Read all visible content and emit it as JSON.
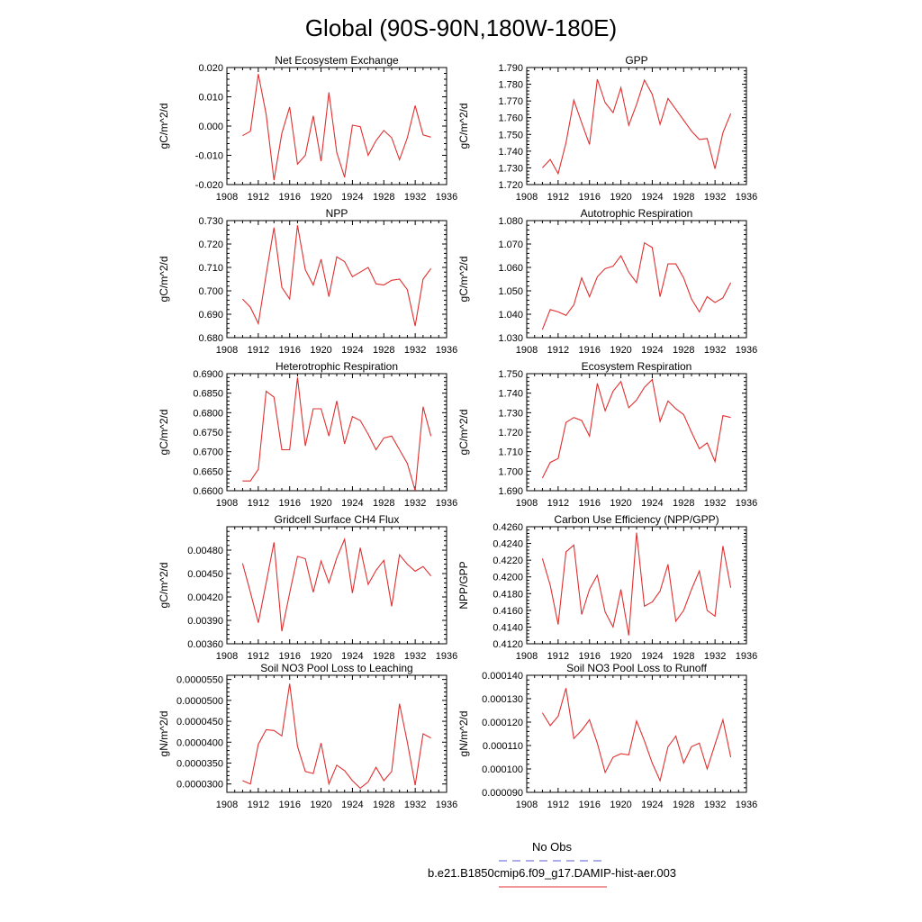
{
  "figure": {
    "title": "Global (90S-90N,180W-180E)",
    "legend": [
      {
        "label": "No Obs",
        "color": "#5b5bd6",
        "dash": true
      },
      {
        "label": "b.e21.B1850cmip6.f09_g17.DAMIP-hist-aer.003",
        "color": "#e03030",
        "dash": false
      }
    ]
  },
  "chart_data": [
    {
      "type": "line",
      "title": "Net Ecosystem Exchange",
      "ylabel": "gC/m^2/d",
      "xlim": [
        1908,
        1936
      ],
      "xticks": [
        1908,
        1912,
        1916,
        1920,
        1924,
        1928,
        1932,
        1936
      ],
      "ylim": [
        -0.02,
        0.02
      ],
      "yticks": [
        -0.02,
        -0.01,
        0.0,
        0.01,
        0.02
      ],
      "ytick_labels": [
        "-0.020",
        "-0.010",
        "0.000",
        "0.010",
        "0.020"
      ],
      "x": [
        1910,
        1911,
        1912,
        1913,
        1914,
        1915,
        1916,
        1917,
        1918,
        1919,
        1920,
        1921,
        1922,
        1923,
        1924,
        1925,
        1926,
        1927,
        1928,
        1929,
        1930,
        1931,
        1932,
        1933,
        1934
      ],
      "series": [
        {
          "color": "#e03030",
          "values": [
            -0.0033,
            -0.0018,
            0.0178,
            0.004,
            -0.0185,
            -0.0025,
            0.0065,
            -0.013,
            -0.01,
            0.0035,
            -0.012,
            0.0115,
            -0.009,
            -0.0175,
            0.0003,
            -0.0002,
            -0.01,
            -0.005,
            -0.0015,
            -0.004,
            -0.0115,
            -0.004,
            0.007,
            -0.003,
            -0.0038
          ]
        }
      ]
    },
    {
      "type": "line",
      "title": "GPP",
      "ylabel": "gC/m^2/d",
      "xlim": [
        1908,
        1936
      ],
      "xticks": [
        1908,
        1912,
        1916,
        1920,
        1924,
        1928,
        1932,
        1936
      ],
      "ylim": [
        1.72,
        1.79
      ],
      "yticks": [
        1.72,
        1.73,
        1.74,
        1.75,
        1.76,
        1.77,
        1.78,
        1.79
      ],
      "ytick_labels": [
        "1.720",
        "1.730",
        "1.740",
        "1.750",
        "1.760",
        "1.770",
        "1.780",
        "1.790"
      ],
      "x": [
        1910,
        1911,
        1912,
        1913,
        1914,
        1915,
        1916,
        1917,
        1918,
        1919,
        1920,
        1921,
        1922,
        1923,
        1924,
        1925,
        1926,
        1927,
        1928,
        1929,
        1930,
        1931,
        1932,
        1933,
        1934
      ],
      "series": [
        {
          "color": "#e03030",
          "values": [
            1.73,
            1.735,
            1.7265,
            1.745,
            1.7705,
            1.757,
            1.744,
            1.783,
            1.769,
            1.763,
            1.778,
            1.7555,
            1.768,
            1.7825,
            1.774,
            1.756,
            1.7715,
            1.765,
            1.7585,
            1.752,
            1.747,
            1.7475,
            1.7295,
            1.751,
            1.7625
          ]
        }
      ]
    },
    {
      "type": "line",
      "title": "NPP",
      "ylabel": "gC/m^2/d",
      "xlim": [
        1908,
        1936
      ],
      "xticks": [
        1908,
        1912,
        1916,
        1920,
        1924,
        1928,
        1932,
        1936
      ],
      "ylim": [
        0.68,
        0.73
      ],
      "yticks": [
        0.68,
        0.69,
        0.7,
        0.71,
        0.72,
        0.73
      ],
      "ytick_labels": [
        "0.680",
        "0.690",
        "0.700",
        "0.710",
        "0.720",
        "0.730"
      ],
      "x": [
        1910,
        1911,
        1912,
        1913,
        1914,
        1915,
        1916,
        1917,
        1918,
        1919,
        1920,
        1921,
        1922,
        1923,
        1924,
        1925,
        1926,
        1927,
        1928,
        1929,
        1930,
        1931,
        1932,
        1933,
        1934
      ],
      "series": [
        {
          "color": "#e03030",
          "values": [
            0.6965,
            0.693,
            0.686,
            0.707,
            0.727,
            0.7015,
            0.6965,
            0.728,
            0.709,
            0.7025,
            0.7135,
            0.6975,
            0.7145,
            0.7125,
            0.706,
            0.708,
            0.71,
            0.703,
            0.7025,
            0.7045,
            0.705,
            0.7005,
            0.685,
            0.705,
            0.7095
          ]
        }
      ]
    },
    {
      "type": "line",
      "title": "Autotrophic Respiration",
      "ylabel": "gC/m^2/d",
      "xlim": [
        1908,
        1936
      ],
      "xticks": [
        1908,
        1912,
        1916,
        1920,
        1924,
        1928,
        1932,
        1936
      ],
      "ylim": [
        1.03,
        1.08
      ],
      "yticks": [
        1.03,
        1.04,
        1.05,
        1.06,
        1.07,
        1.08
      ],
      "ytick_labels": [
        "1.030",
        "1.040",
        "1.050",
        "1.060",
        "1.070",
        "1.080"
      ],
      "x": [
        1910,
        1911,
        1912,
        1913,
        1914,
        1915,
        1916,
        1917,
        1918,
        1919,
        1920,
        1921,
        1922,
        1923,
        1924,
        1925,
        1926,
        1927,
        1928,
        1929,
        1930,
        1931,
        1932,
        1933,
        1934
      ],
      "series": [
        {
          "color": "#e03030",
          "values": [
            1.0335,
            1.042,
            1.041,
            1.0395,
            1.044,
            1.0555,
            1.0475,
            1.056,
            1.0595,
            1.0605,
            1.065,
            1.058,
            1.0535,
            1.0705,
            1.0685,
            1.0475,
            1.0615,
            1.0615,
            1.0555,
            1.0465,
            1.041,
            1.0475,
            1.045,
            1.047,
            1.0535
          ]
        }
      ]
    },
    {
      "type": "line",
      "title": "Heterotrophic Respiration",
      "ylabel": "gC/m^2/d",
      "xlim": [
        1908,
        1936
      ],
      "xticks": [
        1908,
        1912,
        1916,
        1920,
        1924,
        1928,
        1932,
        1936
      ],
      "ylim": [
        0.66,
        0.69
      ],
      "yticks": [
        0.66,
        0.665,
        0.67,
        0.675,
        0.68,
        0.685,
        0.69
      ],
      "ytick_labels": [
        "0.6600",
        "0.6650",
        "0.6700",
        "0.6750",
        "0.6800",
        "0.6850",
        "0.6900"
      ],
      "x": [
        1910,
        1911,
        1912,
        1913,
        1914,
        1915,
        1916,
        1917,
        1918,
        1919,
        1920,
        1921,
        1922,
        1923,
        1924,
        1925,
        1926,
        1927,
        1928,
        1929,
        1930,
        1931,
        1932,
        1933,
        1934
      ],
      "series": [
        {
          "color": "#e03030",
          "values": [
            0.6625,
            0.6625,
            0.6655,
            0.6855,
            0.684,
            0.6705,
            0.6705,
            0.689,
            0.6715,
            0.681,
            0.681,
            0.674,
            0.683,
            0.672,
            0.679,
            0.678,
            0.6745,
            0.6705,
            0.6735,
            0.674,
            0.6705,
            0.667,
            0.66,
            0.6815,
            0.674
          ]
        }
      ]
    },
    {
      "type": "line",
      "title": "Ecosystem Respiration",
      "ylabel": "gC/m^2/d",
      "xlim": [
        1908,
        1936
      ],
      "xticks": [
        1908,
        1912,
        1916,
        1920,
        1924,
        1928,
        1932,
        1936
      ],
      "ylim": [
        1.69,
        1.75
      ],
      "yticks": [
        1.69,
        1.7,
        1.71,
        1.72,
        1.73,
        1.74,
        1.75
      ],
      "ytick_labels": [
        "1.690",
        "1.700",
        "1.710",
        "1.720",
        "1.730",
        "1.740",
        "1.750"
      ],
      "x": [
        1910,
        1911,
        1912,
        1913,
        1914,
        1915,
        1916,
        1917,
        1918,
        1919,
        1920,
        1921,
        1922,
        1923,
        1924,
        1925,
        1926,
        1927,
        1928,
        1929,
        1930,
        1931,
        1932,
        1933,
        1934
      ],
      "series": [
        {
          "color": "#e03030",
          "values": [
            1.6965,
            1.7045,
            1.7065,
            1.725,
            1.7275,
            1.726,
            1.718,
            1.745,
            1.731,
            1.741,
            1.746,
            1.7325,
            1.7365,
            1.743,
            1.747,
            1.7255,
            1.736,
            1.732,
            1.729,
            1.72,
            1.7115,
            1.7145,
            1.705,
            1.7285,
            1.7275
          ]
        }
      ]
    },
    {
      "type": "line",
      "title": "Gridcell Surface CH4 Flux",
      "ylabel": "gC/m^2/d",
      "xlim": [
        1908,
        1936
      ],
      "xticks": [
        1908,
        1912,
        1916,
        1920,
        1924,
        1928,
        1932,
        1936
      ],
      "ylim": [
        0.0036,
        0.0051
      ],
      "yticks": [
        0.0036,
        0.0039,
        0.0042,
        0.0045,
        0.0048
      ],
      "ytick_labels": [
        "0.00360",
        "0.00390",
        "0.00420",
        "0.00450",
        "0.00480"
      ],
      "x": [
        1910,
        1911,
        1912,
        1913,
        1914,
        1915,
        1916,
        1917,
        1918,
        1919,
        1920,
        1921,
        1922,
        1923,
        1924,
        1925,
        1926,
        1927,
        1928,
        1929,
        1930,
        1931,
        1932,
        1933,
        1934
      ],
      "series": [
        {
          "color": "#e03030",
          "values": [
            0.00463,
            0.00426,
            0.00387,
            0.00438,
            0.0049,
            0.00376,
            0.00425,
            0.00472,
            0.00469,
            0.00426,
            0.00466,
            0.00438,
            0.0047,
            0.00494,
            0.00425,
            0.00483,
            0.00436,
            0.00454,
            0.00467,
            0.00408,
            0.00474,
            0.00462,
            0.00453,
            0.00459,
            0.00447
          ]
        }
      ]
    },
    {
      "type": "line",
      "title": "Carbon Use Efficiency (NPP/GPP)",
      "ylabel": "NPP/GPP",
      "xlim": [
        1908,
        1936
      ],
      "xticks": [
        1908,
        1912,
        1916,
        1920,
        1924,
        1928,
        1932,
        1936
      ],
      "ylim": [
        0.412,
        0.426
      ],
      "yticks": [
        0.412,
        0.414,
        0.416,
        0.418,
        0.42,
        0.422,
        0.424,
        0.426
      ],
      "ytick_labels": [
        "0.4120",
        "0.4140",
        "0.4160",
        "0.4180",
        "0.4200",
        "0.4220",
        "0.4240",
        "0.4260"
      ],
      "x": [
        1910,
        1911,
        1912,
        1913,
        1914,
        1915,
        1916,
        1917,
        1918,
        1919,
        1920,
        1921,
        1922,
        1923,
        1924,
        1925,
        1926,
        1927,
        1928,
        1929,
        1930,
        1931,
        1932,
        1933,
        1934
      ],
      "series": [
        {
          "color": "#e03030",
          "values": [
            0.4222,
            0.419,
            0.4143,
            0.423,
            0.4238,
            0.4155,
            0.4185,
            0.4202,
            0.4158,
            0.414,
            0.4185,
            0.413,
            0.4253,
            0.4165,
            0.417,
            0.4183,
            0.4215,
            0.4147,
            0.416,
            0.4185,
            0.4207,
            0.416,
            0.4153,
            0.4237,
            0.4187
          ]
        }
      ]
    },
    {
      "type": "line",
      "title": "Soil NO3 Pool Loss to Leaching",
      "ylabel": "gN/m^2/d",
      "xlim": [
        1908,
        1936
      ],
      "xticks": [
        1908,
        1912,
        1916,
        1920,
        1924,
        1928,
        1932,
        1936
      ],
      "ylim": [
        2.8e-05,
        5.6e-05
      ],
      "yticks": [
        3e-05,
        3.5e-05,
        4e-05,
        4.5e-05,
        5e-05,
        5.5e-05
      ],
      "ytick_labels": [
        "0.0000300",
        "0.0000350",
        "0.0000400",
        "0.0000450",
        "0.0000500",
        "0.0000550"
      ],
      "x": [
        1910,
        1911,
        1912,
        1913,
        1914,
        1915,
        1916,
        1917,
        1918,
        1919,
        1920,
        1921,
        1922,
        1923,
        1924,
        1925,
        1926,
        1927,
        1928,
        1929,
        1930,
        1931,
        1932,
        1933,
        1934
      ],
      "series": [
        {
          "color": "#e03030",
          "values": [
            3.08e-05,
            3e-05,
            3.95e-05,
            4.3e-05,
            4.28e-05,
            4.15e-05,
            5.4e-05,
            3.9e-05,
            3.3e-05,
            3.25e-05,
            3.98e-05,
            3e-05,
            3.45e-05,
            3.32e-05,
            3.08e-05,
            2.9e-05,
            3.05e-05,
            3.4e-05,
            3.08e-05,
            3.3e-05,
            4.92e-05,
            4e-05,
            2.97e-05,
            4.2e-05,
            4.1e-05
          ]
        }
      ]
    },
    {
      "type": "line",
      "title": "Soil NO3 Pool Loss to Runoff",
      "ylabel": "gN/m^2/d",
      "xlim": [
        1908,
        1936
      ],
      "xticks": [
        1908,
        1912,
        1916,
        1920,
        1924,
        1928,
        1932,
        1936
      ],
      "ylim": [
        9e-05,
        0.00014
      ],
      "yticks": [
        9e-05,
        0.0001,
        0.00011,
        0.00012,
        0.00013,
        0.00014
      ],
      "ytick_labels": [
        "0.000090",
        "0.000100",
        "0.000110",
        "0.000120",
        "0.000130",
        "0.000140"
      ],
      "x": [
        1910,
        1911,
        1912,
        1913,
        1914,
        1915,
        1916,
        1917,
        1918,
        1919,
        1920,
        1921,
        1922,
        1923,
        1924,
        1925,
        1926,
        1927,
        1928,
        1929,
        1930,
        1931,
        1932,
        1933,
        1934
      ],
      "series": [
        {
          "color": "#e03030",
          "values": [
            0.000124,
            0.0001185,
            0.0001225,
            0.0001345,
            0.000113,
            0.0001165,
            0.000121,
            0.000111,
            9.85e-05,
            0.000105,
            0.0001065,
            0.000106,
            0.0001205,
            0.000112,
            0.0001025,
            9.5e-05,
            0.0001095,
            0.000114,
            0.0001025,
            0.0001095,
            0.000111,
            0.0001,
            0.0001105,
            0.000121,
            0.000105
          ]
        }
      ]
    }
  ]
}
